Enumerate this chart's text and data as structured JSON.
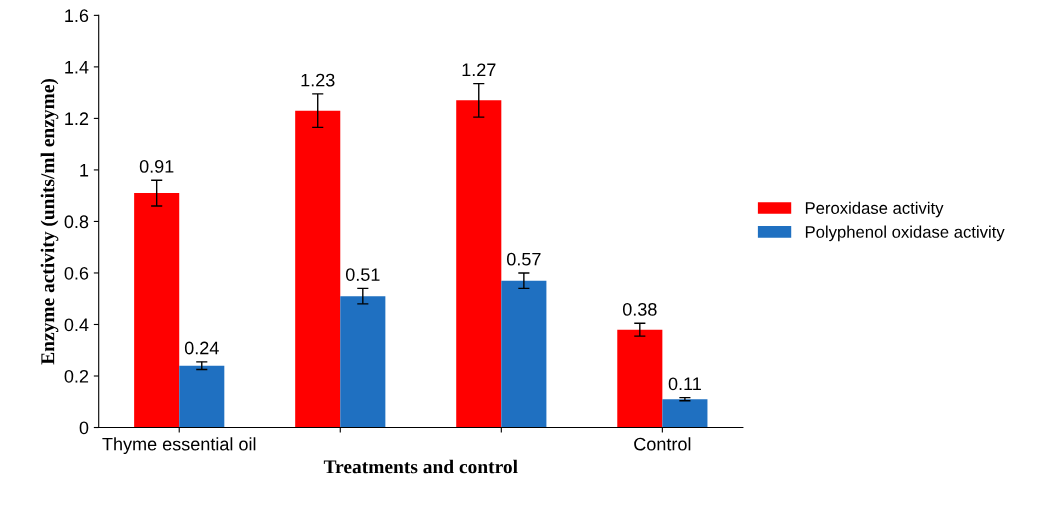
{
  "chart_data": {
    "type": "bar",
    "xlabel": "Treatments and control",
    "ylabel": "Enzyme activity (units/ml enzyme)",
    "categories": [
      "Thyme essential oil",
      null,
      null,
      "Control"
    ],
    "series": [
      {
        "name": "Peroxidase activity",
        "color": "#ff0000",
        "values": [
          0.91,
          1.23,
          1.27,
          0.38
        ],
        "errors": [
          0.05,
          0.065,
          0.065,
          0.025
        ]
      },
      {
        "name": "Polyphenol oxidase activity",
        "color": "#1f70c1",
        "values": [
          0.24,
          0.51,
          0.57,
          0.11
        ],
        "errors": [
          0.015,
          0.03,
          0.03,
          0.006
        ]
      }
    ],
    "ylim": [
      0,
      1.6
    ],
    "yticks": [
      0,
      0.2,
      0.4,
      0.6,
      0.8,
      1,
      1.2,
      1.4,
      1.6
    ],
    "data_labels": true,
    "legend": "right",
    "grid": false
  }
}
